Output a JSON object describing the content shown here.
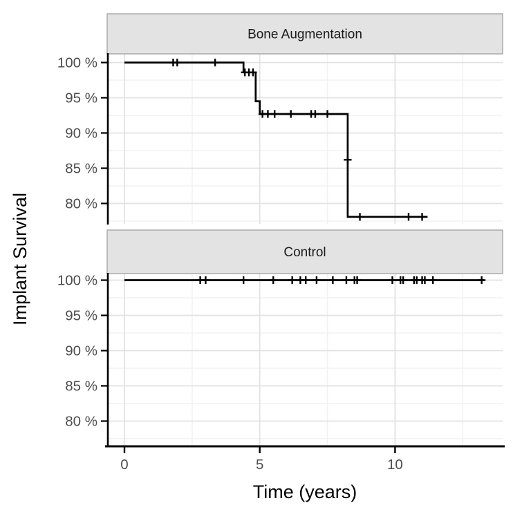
{
  "colors": {
    "background": "#ffffff",
    "panel_background": "#ffffff",
    "grid_major": "#e2e2e2",
    "grid_minor": "#f2f2f2",
    "strip_fill": "#e3e3e3",
    "strip_border": "#a6a6a6",
    "curve": "#000000",
    "censor": "#000000",
    "axis_line": "#000000",
    "tick_label": "#4d4d4d",
    "strip_text": "#1a1a1a",
    "axis_title": "#000000"
  },
  "chart_data": {
    "type": "line",
    "subtype": "kaplan-meier-step-faceted",
    "title": "",
    "xlabel": "Time (years)",
    "ylabel": "Implant Survival",
    "x_ticks": [
      0,
      5,
      10
    ],
    "x_tick_labels": [
      "0",
      "5",
      "10"
    ],
    "x_minor_ticks": [
      2.5,
      7.5,
      12.5
    ],
    "y_ticks": [
      100,
      95,
      90,
      85,
      80
    ],
    "y_tick_labels": [
      "100 %",
      "95 %",
      "90 %",
      "85 %",
      "80 %"
    ],
    "y_minor_ticks": [
      97.5,
      92.5,
      87.5,
      82.5,
      77.5
    ],
    "y_tick_suffix": " %",
    "xlim": [
      -0.64,
      14.0
    ],
    "ylim": [
      76.8,
      101.3
    ],
    "grid": true,
    "legend_position": "none",
    "facets": [
      {
        "label": "Bone Augmentation",
        "steps": [
          [
            0,
            100
          ],
          [
            4.4,
            100
          ],
          [
            4.4,
            98.6
          ],
          [
            4.85,
            98.6
          ],
          [
            4.85,
            94.5
          ],
          [
            5.0,
            94.5
          ],
          [
            5.0,
            92.7
          ],
          [
            8.25,
            92.7
          ],
          [
            8.25,
            78.1
          ],
          [
            11.2,
            78.1
          ]
        ],
        "censor_marks": [
          [
            1.8,
            100
          ],
          [
            1.95,
            100
          ],
          [
            3.35,
            100
          ],
          [
            4.45,
            98.6
          ],
          [
            4.6,
            98.6
          ],
          [
            4.75,
            98.6
          ],
          [
            5.1,
            92.7
          ],
          [
            5.3,
            92.7
          ],
          [
            5.55,
            92.7
          ],
          [
            6.15,
            92.7
          ],
          [
            6.9,
            92.7
          ],
          [
            7.05,
            92.7
          ],
          [
            7.5,
            92.7
          ],
          [
            8.25,
            86.2
          ],
          [
            8.7,
            78.1
          ],
          [
            10.5,
            78.1
          ],
          [
            11.0,
            78.1
          ]
        ]
      },
      {
        "label": "Control",
        "steps": [
          [
            0,
            100
          ],
          [
            13.3,
            100
          ]
        ],
        "censor_marks": [
          [
            2.8,
            100
          ],
          [
            3.0,
            100
          ],
          [
            4.4,
            100
          ],
          [
            5.5,
            100
          ],
          [
            6.2,
            100
          ],
          [
            6.5,
            100
          ],
          [
            6.7,
            100
          ],
          [
            7.1,
            100
          ],
          [
            7.7,
            100
          ],
          [
            8.2,
            100
          ],
          [
            8.5,
            100
          ],
          [
            8.6,
            100
          ],
          [
            9.9,
            100
          ],
          [
            10.2,
            100
          ],
          [
            10.3,
            100
          ],
          [
            10.7,
            100
          ],
          [
            10.8,
            100
          ],
          [
            11.0,
            100
          ],
          [
            11.1,
            100
          ],
          [
            11.4,
            100
          ],
          [
            13.2,
            100
          ]
        ]
      }
    ]
  }
}
